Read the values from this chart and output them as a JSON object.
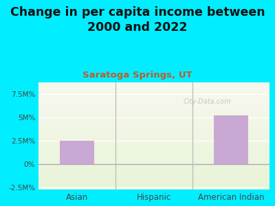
{
  "title": "Change in per capita income between\n2000 and 2022",
  "subtitle": "Saratoga Springs, UT",
  "categories": [
    "Asian",
    "Hispanic",
    "American Indian"
  ],
  "values": [
    2.5,
    0.0,
    5.2
  ],
  "bar_color": "#c9a8d4",
  "title_fontsize": 12.5,
  "subtitle_fontsize": 9.5,
  "subtitle_color": "#c05a2a",
  "title_color": "#111111",
  "background_color": "#00eeff",
  "plot_bg_top": "#d8ecc8",
  "plot_bg_bottom": "#f5f5e8",
  "ylim": [
    -2.75,
    8.75
  ],
  "yticks": [
    -2.5,
    0.0,
    2.5,
    5.0,
    7.5
  ],
  "ytick_labels": [
    "-2.5M%",
    "0%",
    "2.5M%",
    "5M%",
    "7.5M%"
  ],
  "watermark": "City-Data.com",
  "bar_width": 0.45
}
